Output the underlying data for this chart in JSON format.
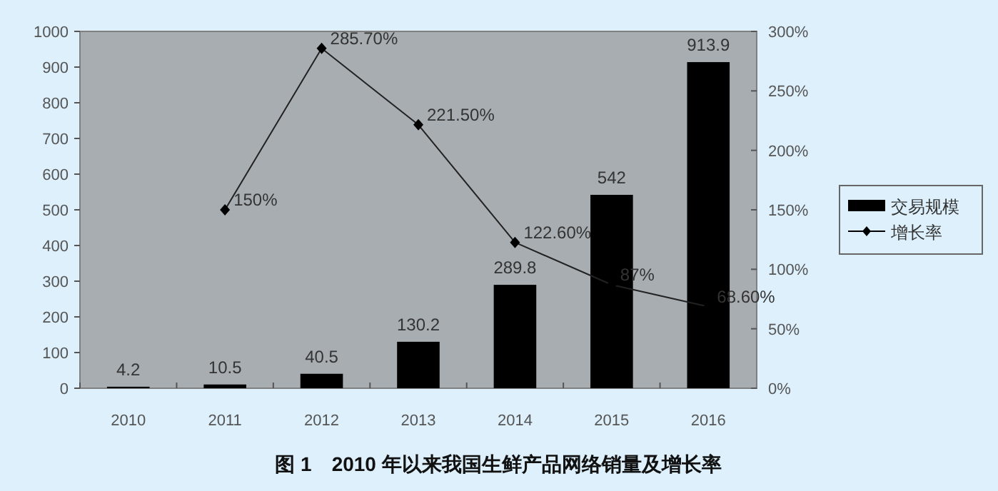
{
  "chart_data": {
    "type": "bar",
    "title": "图 1　2010 年以来我国生鲜产品网络销量及增长率",
    "categories": [
      "2010",
      "2011",
      "2012",
      "2013",
      "2014",
      "2015",
      "2016"
    ],
    "series": [
      {
        "name": "交易规模",
        "color": "#000000",
        "values": [
          4.2,
          10.5,
          40.5,
          130.2,
          289.8,
          542,
          913.9
        ],
        "data_labels": true
      },
      {
        "name": "增长率",
        "type": "line",
        "axis": "y2",
        "color": "#000000",
        "marker": "diamond",
        "values": [
          null,
          150,
          285.7,
          221.5,
          122.6,
          87,
          68.6
        ],
        "value_labels": [
          null,
          "150%",
          "285.70%",
          "221.50%",
          "122.60%",
          "87%",
          "68.60%"
        ]
      }
    ],
    "ylim": [
      0,
      1000
    ],
    "yticks": [
      0,
      100,
      200,
      300,
      400,
      500,
      600,
      700,
      800,
      900,
      1000
    ],
    "y2lim": [
      0,
      300
    ],
    "y2ticks": [
      {
        "value": 0,
        "label": "0%"
      },
      {
        "value": 50,
        "label": "50%"
      },
      {
        "value": 100,
        "label": "100%"
      },
      {
        "value": 150,
        "label": "150%"
      },
      {
        "value": 200,
        "label": "200%"
      },
      {
        "value": 250,
        "label": "250%"
      },
      {
        "value": 300,
        "label": "300%"
      }
    ],
    "legend": "right",
    "grid": false
  }
}
